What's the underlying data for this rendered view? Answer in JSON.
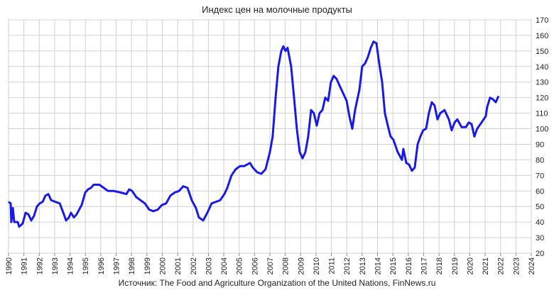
{
  "chart_data": {
    "type": "line",
    "title": "Индекс цен на молочные продукты",
    "source": "Источник: The Food and Agriculture Organization of the United Nations, FinNews.ru",
    "series": [
      {
        "name": "Индекс цен на молочные продукты",
        "color": "#1a1ae6",
        "x": [
          1990.0,
          1990.14,
          1990.18,
          1990.28,
          1990.37,
          1990.6,
          1990.69,
          1990.92,
          1991.11,
          1991.29,
          1991.48,
          1991.66,
          1991.85,
          1992.03,
          1992.22,
          1992.4,
          1992.59,
          1992.77,
          1993.05,
          1993.33,
          1993.6,
          1993.74,
          1993.93,
          1994.06,
          1994.25,
          1994.43,
          1994.76,
          1994.99,
          1995.17,
          1995.36,
          1995.54,
          1995.91,
          1996.19,
          1996.47,
          1996.84,
          1997.3,
          1997.67,
          1997.85,
          1998.04,
          1998.31,
          1998.59,
          1998.87,
          1999.15,
          1999.42,
          1999.7,
          1999.98,
          2000.25,
          2000.53,
          2000.81,
          2001.09,
          2001.36,
          2001.64,
          2001.92,
          2002.19,
          2002.38,
          2002.66,
          2002.93,
          2003.21,
          2003.49,
          2003.76,
          2004.04,
          2004.23,
          2004.5,
          2004.78,
          2005.06,
          2005.33,
          2005.52,
          2005.7,
          2005.89,
          2006.17,
          2006.44,
          2006.72,
          2007.0,
          2007.18,
          2007.37,
          2007.55,
          2007.74,
          2007.88,
          2008.01,
          2008.15,
          2008.38,
          2008.57,
          2008.75,
          2008.94,
          2009.12,
          2009.31,
          2009.49,
          2009.68,
          2009.86,
          2010.05,
          2010.23,
          2010.42,
          2010.6,
          2010.79,
          2010.97,
          2011.15,
          2011.34,
          2011.52,
          2011.8,
          2011.99,
          2012.17,
          2012.36,
          2012.54,
          2012.82,
          2013.0,
          2013.19,
          2013.37,
          2013.56,
          2013.74,
          2013.93,
          2014.11,
          2014.3,
          2014.48,
          2014.67,
          2014.85,
          2015.03,
          2015.31,
          2015.59,
          2015.68,
          2015.87,
          2016.05,
          2016.24,
          2016.42,
          2016.61,
          2016.79,
          2016.97,
          2017.16,
          2017.34,
          2017.53,
          2017.71,
          2017.9,
          2018.08,
          2018.36,
          2018.64,
          2018.82,
          2019.01,
          2019.19,
          2019.47,
          2019.75,
          2019.93,
          2020.12,
          2020.3,
          2020.48,
          2020.76,
          2021.04,
          2021.13,
          2021.32,
          2021.5,
          2021.69,
          2021.87
        ],
        "values": [
          53,
          52,
          40,
          49,
          40,
          40,
          37,
          39,
          46,
          45,
          41,
          44,
          50,
          52,
          53,
          57,
          58,
          54,
          53,
          52,
          45,
          41,
          43,
          46,
          43,
          45,
          51,
          59,
          61,
          62,
          64,
          64,
          62,
          60,
          60,
          59,
          58,
          61,
          60,
          56,
          54,
          52,
          48,
          47,
          48,
          51,
          52,
          57,
          59,
          60,
          63,
          62,
          54,
          49,
          43,
          41,
          46,
          52,
          53,
          54,
          58,
          62,
          70,
          74,
          76,
          76,
          77,
          78,
          75,
          72,
          71,
          74,
          85,
          95,
          120,
          140,
          150,
          153,
          150,
          152,
          140,
          120,
          100,
          85,
          81,
          85,
          95,
          112,
          110,
          102,
          110,
          112,
          120,
          118,
          130,
          134,
          132,
          128,
          122,
          118,
          108,
          100,
          112,
          125,
          140,
          142,
          146,
          152,
          156,
          155,
          142,
          130,
          110,
          102,
          95,
          93,
          85,
          80,
          87,
          78,
          77,
          73,
          75,
          90,
          95,
          99,
          100,
          110,
          117,
          115,
          106,
          110,
          112,
          106,
          99,
          104,
          106,
          101,
          101,
          104,
          103,
          95,
          100,
          104,
          108,
          114,
          120,
          119,
          117,
          121
        ]
      }
    ],
    "xlim": [
      1990,
      2024
    ],
    "xticks": [
      1990,
      1991,
      1992,
      1993,
      1994,
      1995,
      1996,
      1997,
      1998,
      1999,
      2000,
      2001,
      2002,
      2003,
      2004,
      2005,
      2006,
      2007,
      2008,
      2009,
      2010,
      2011,
      2012,
      2013,
      2014,
      2015,
      2016,
      2017,
      2018,
      2019,
      2020,
      2021,
      2022,
      2023,
      2024
    ],
    "ylim": [
      20,
      170
    ],
    "yticks": [
      20,
      30,
      40,
      50,
      60,
      70,
      80,
      90,
      100,
      110,
      120,
      130,
      140,
      150,
      160,
      170
    ],
    "grid": true
  }
}
